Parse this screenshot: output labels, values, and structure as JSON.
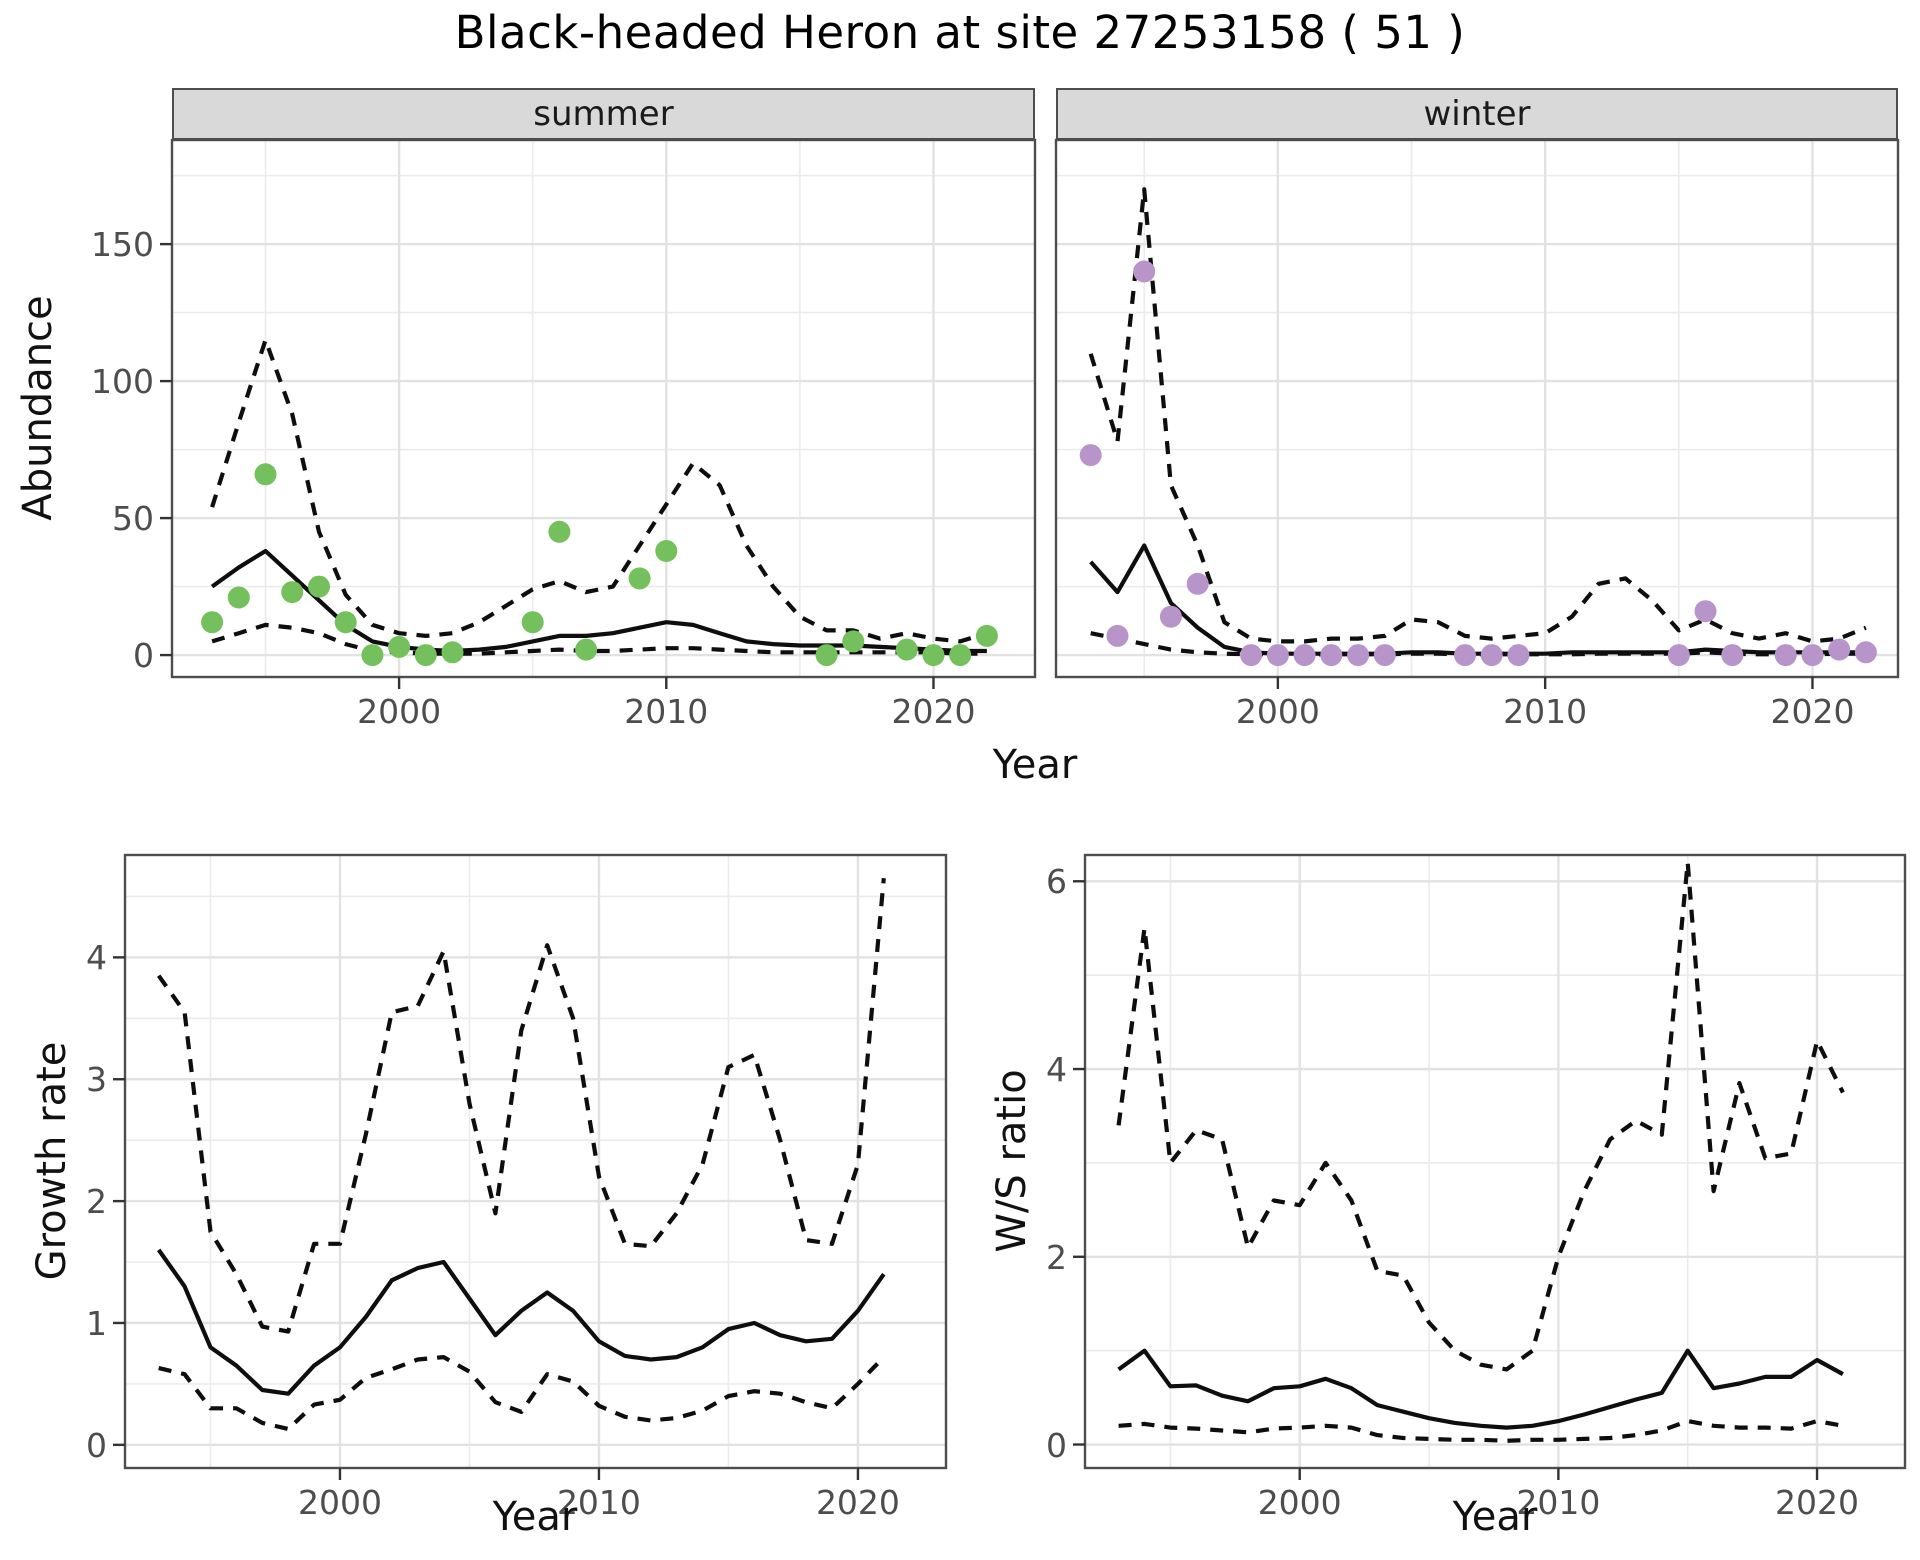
{
  "title": "Black-headed Heron at site 27253158 ( 51 )",
  "colors": {
    "summer_points": "#73C05C",
    "winter_points": "#B794C9",
    "line": "#0E0E0E",
    "grid_major": "#E2E2E2",
    "grid_minor": "#EBEBEB",
    "panel_border": "#4D4D4D",
    "strip_background": "#D9D9D9",
    "tick_text": "#4D4D4D"
  },
  "chart_data": [
    {
      "id": "abundance-summer",
      "type": "line",
      "facet_label": "summer",
      "ylabel": "Abundance",
      "xlabel": "Year",
      "xlim": [
        1991.5,
        2023.8
      ],
      "ylim": [
        -8,
        188
      ],
      "xticks": [
        2000,
        2010,
        2020
      ],
      "yticks": [
        0,
        50,
        100,
        150
      ],
      "xminor": [
        1995,
        2005,
        2015
      ],
      "yminor": [
        25,
        75,
        125,
        175
      ],
      "grid": true,
      "legend": "none",
      "series": [
        {
          "name": "ci-upper",
          "type": "line",
          "style": "dashed",
          "x": [
            1993,
            1994,
            1995,
            1996,
            1997,
            1998,
            1999,
            2000,
            2001,
            2002,
            2003,
            2004,
            2005,
            2006,
            2007,
            2008,
            2009,
            2010,
            2011,
            2012,
            2013,
            2014,
            2015,
            2016,
            2017,
            2018,
            2019,
            2020,
            2021,
            2022
          ],
          "y": [
            54,
            85,
            115,
            88,
            45,
            22,
            11,
            8,
            7,
            8,
            12,
            18,
            24,
            27,
            23,
            25,
            40,
            55,
            70,
            62,
            40,
            25,
            14,
            9,
            9,
            6,
            8,
            6,
            5,
            8
          ]
        },
        {
          "name": "ci-lower",
          "type": "line",
          "style": "dashed",
          "x": [
            1993,
            1994,
            1995,
            1996,
            1997,
            1998,
            1999,
            2000,
            2001,
            2002,
            2003,
            2004,
            2005,
            2006,
            2007,
            2008,
            2009,
            2010,
            2011,
            2012,
            2013,
            2014,
            2015,
            2016,
            2017,
            2018,
            2019,
            2020,
            2021,
            2022
          ],
          "y": [
            5,
            8,
            11,
            10,
            8,
            4,
            1.5,
            1,
            0.5,
            0.5,
            0.5,
            1,
            1.5,
            2,
            1.5,
            1.5,
            2,
            2.5,
            2.5,
            2,
            1.5,
            1,
            1,
            1,
            1,
            1,
            1,
            1,
            0.5,
            0.5
          ]
        },
        {
          "name": "median",
          "type": "line",
          "style": "solid",
          "x": [
            1993,
            1994,
            1995,
            1996,
            1997,
            1998,
            1999,
            2000,
            2001,
            2002,
            2003,
            2004,
            2005,
            2006,
            2007,
            2008,
            2009,
            2010,
            2011,
            2012,
            2013,
            2014,
            2015,
            2016,
            2017,
            2018,
            2019,
            2020,
            2021,
            2022
          ],
          "y": [
            25,
            32,
            38,
            29,
            20,
            11,
            5,
            3,
            2,
            1.5,
            2,
            3,
            5,
            7,
            7,
            8,
            10,
            12,
            11,
            8,
            5,
            4,
            3.5,
            3.5,
            3.5,
            3,
            2.5,
            2,
            1.5,
            1.5
          ]
        },
        {
          "name": "observed-counts",
          "type": "scatter",
          "color": "#73C05C",
          "x": [
            1993,
            1994,
            1995,
            1996,
            1997,
            1998,
            1999,
            2000,
            2001,
            2002,
            2005,
            2006,
            2007,
            2009,
            2010,
            2016,
            2017,
            2019,
            2020,
            2021,
            2022
          ],
          "y": [
            12,
            21,
            66,
            23,
            25,
            12,
            0,
            3,
            0,
            1,
            12,
            45,
            2,
            28,
            38,
            0,
            5,
            2,
            0,
            0,
            7
          ]
        }
      ]
    },
    {
      "id": "abundance-winter",
      "type": "line",
      "facet_label": "winter",
      "xlim": [
        1991.7,
        2023.2
      ],
      "ylim": [
        -8,
        188
      ],
      "xticks": [
        2000,
        2010,
        2020
      ],
      "yticks": [
        0,
        50,
        100,
        150
      ],
      "xminor": [
        1995,
        2005,
        2015
      ],
      "yminor": [
        25,
        75,
        125,
        175
      ],
      "grid": true,
      "legend": "none",
      "series": [
        {
          "name": "ci-upper",
          "type": "line",
          "style": "dashed",
          "x": [
            1993,
            1994,
            1995,
            1996,
            1997,
            1998,
            1999,
            2000,
            2001,
            2002,
            2003,
            2004,
            2005,
            2006,
            2007,
            2008,
            2009,
            2010,
            2011,
            2012,
            2013,
            2014,
            2015,
            2016,
            2017,
            2018,
            2019,
            2020,
            2021,
            2022
          ],
          "y": [
            110,
            78,
            170,
            62,
            40,
            12,
            6,
            5,
            5,
            6,
            6,
            7,
            13,
            12,
            7,
            6,
            7,
            8,
            14,
            26,
            28,
            20,
            9,
            13,
            8,
            6,
            8,
            5,
            6,
            10
          ]
        },
        {
          "name": "ci-lower",
          "type": "line",
          "style": "dashed",
          "x": [
            1993,
            1994,
            1995,
            1996,
            1997,
            1998,
            1999,
            2000,
            2001,
            2002,
            2003,
            2004,
            2005,
            2006,
            2007,
            2008,
            2009,
            2010,
            2011,
            2012,
            2013,
            2014,
            2015,
            2016,
            2017,
            2018,
            2019,
            2020,
            2021,
            2022
          ],
          "y": [
            8,
            6,
            4,
            2,
            1,
            0.5,
            0.3,
            0.3,
            0.3,
            0.3,
            0.3,
            0.3,
            0.5,
            0.5,
            0.3,
            0.3,
            0.3,
            0.3,
            0.3,
            0.5,
            0.5,
            0.5,
            0.5,
            1,
            0.5,
            0.3,
            0.3,
            0.3,
            0.5,
            0.5
          ]
        },
        {
          "name": "median",
          "type": "line",
          "style": "solid",
          "x": [
            1993,
            1994,
            1995,
            1996,
            1997,
            1998,
            1999,
            2000,
            2001,
            2002,
            2003,
            2004,
            2005,
            2006,
            2007,
            2008,
            2009,
            2010,
            2011,
            2012,
            2013,
            2014,
            2015,
            2016,
            2017,
            2018,
            2019,
            2020,
            2021,
            2022
          ],
          "y": [
            34,
            23,
            40,
            19,
            10,
            3,
            1,
            0.5,
            0.5,
            0.5,
            0.5,
            0.5,
            1,
            1,
            0.5,
            0.5,
            0.5,
            0.5,
            1,
            1,
            1,
            1,
            1,
            2,
            1.5,
            1,
            1,
            1,
            1,
            1
          ]
        },
        {
          "name": "observed-counts",
          "type": "scatter",
          "color": "#B794C9",
          "x": [
            1993,
            1994,
            1995,
            1996,
            1997,
            1999,
            2000,
            2001,
            2002,
            2003,
            2004,
            2007,
            2008,
            2009,
            2015,
            2016,
            2017,
            2019,
            2020,
            2021,
            2022
          ],
          "y": [
            73,
            7,
            140,
            14,
            26,
            0,
            0,
            0,
            0,
            0,
            0,
            0,
            0,
            0,
            0,
            16,
            0,
            0,
            0,
            2,
            1
          ]
        }
      ]
    },
    {
      "id": "growth-rate",
      "type": "line",
      "ylabel": "Growth rate",
      "xlabel": "Year",
      "xlim": [
        1991.7,
        2023.4
      ],
      "ylim": [
        -0.19,
        4.84
      ],
      "xticks": [
        2000,
        2010,
        2020
      ],
      "yticks": [
        0,
        1,
        2,
        3,
        4
      ],
      "xminor": [
        1995,
        2005,
        2015
      ],
      "yminor": [
        0.5,
        1.5,
        2.5,
        3.5,
        4.5
      ],
      "grid": true,
      "legend": "none",
      "series": [
        {
          "name": "ci-upper",
          "type": "line",
          "style": "dashed",
          "x": [
            1993,
            1994,
            1995,
            1996,
            1997,
            1998,
            1999,
            2000,
            2001,
            2002,
            2003,
            2004,
            2005,
            2006,
            2007,
            2008,
            2009,
            2010,
            2011,
            2012,
            2013,
            2014,
            2015,
            2016,
            2017,
            2018,
            2019,
            2020,
            2021
          ],
          "y": [
            3.85,
            3.55,
            1.75,
            1.4,
            0.97,
            0.93,
            1.65,
            1.65,
            2.55,
            3.55,
            3.6,
            4.05,
            2.8,
            1.9,
            3.4,
            4.1,
            3.5,
            2.2,
            1.65,
            1.63,
            1.9,
            2.3,
            3.1,
            3.2,
            2.5,
            1.68,
            1.65,
            2.3,
            4.65
          ]
        },
        {
          "name": "ci-lower",
          "type": "line",
          "style": "dashed",
          "x": [
            1993,
            1994,
            1995,
            1996,
            1997,
            1998,
            1999,
            2000,
            2001,
            2002,
            2003,
            2004,
            2005,
            2006,
            2007,
            2008,
            2009,
            2010,
            2011,
            2012,
            2013,
            2014,
            2015,
            2016,
            2017,
            2018,
            2019,
            2020,
            2021
          ],
          "y": [
            0.63,
            0.58,
            0.3,
            0.3,
            0.18,
            0.13,
            0.33,
            0.37,
            0.55,
            0.62,
            0.7,
            0.72,
            0.6,
            0.35,
            0.27,
            0.58,
            0.52,
            0.32,
            0.23,
            0.2,
            0.22,
            0.28,
            0.4,
            0.44,
            0.42,
            0.35,
            0.3,
            0.5,
            0.72
          ]
        },
        {
          "name": "median",
          "type": "line",
          "style": "solid",
          "x": [
            1993,
            1994,
            1995,
            1996,
            1997,
            1998,
            1999,
            2000,
            2001,
            2002,
            2003,
            2004,
            2005,
            2006,
            2007,
            2008,
            2009,
            2010,
            2011,
            2012,
            2013,
            2014,
            2015,
            2016,
            2017,
            2018,
            2019,
            2020,
            2021
          ],
          "y": [
            1.6,
            1.3,
            0.8,
            0.65,
            0.45,
            0.42,
            0.65,
            0.8,
            1.05,
            1.35,
            1.45,
            1.5,
            1.2,
            0.9,
            1.1,
            1.25,
            1.1,
            0.85,
            0.73,
            0.7,
            0.72,
            0.8,
            0.95,
            1.0,
            0.9,
            0.85,
            0.87,
            1.1,
            1.4
          ]
        }
      ]
    },
    {
      "id": "ws-ratio",
      "type": "line",
      "ylabel": "W/S ratio",
      "xlabel": "Year",
      "xlim": [
        1991.7,
        2023.4
      ],
      "ylim": [
        -0.25,
        6.28
      ],
      "xticks": [
        2000,
        2010,
        2020
      ],
      "yticks": [
        0,
        2,
        4,
        6
      ],
      "xminor": [
        1995,
        2005,
        2015
      ],
      "yminor": [
        1,
        3,
        5
      ],
      "grid": true,
      "legend": "none",
      "series": [
        {
          "name": "ci-upper",
          "type": "line",
          "style": "dashed",
          "x": [
            1993,
            1994,
            1995,
            1996,
            1997,
            1998,
            1999,
            2000,
            2001,
            2002,
            2003,
            2004,
            2005,
            2006,
            2007,
            2008,
            2009,
            2010,
            2011,
            2012,
            2013,
            2014,
            2015,
            2016,
            2017,
            2018,
            2019,
            2020,
            2021
          ],
          "y": [
            3.4,
            5.5,
            3.0,
            3.35,
            3.25,
            2.1,
            2.6,
            2.55,
            3.0,
            2.6,
            1.85,
            1.8,
            1.3,
            1.0,
            0.85,
            0.8,
            1.0,
            2.0,
            2.7,
            3.25,
            3.45,
            3.3,
            6.2,
            2.7,
            3.85,
            3.05,
            3.1,
            4.3,
            3.75
          ]
        },
        {
          "name": "ci-lower",
          "type": "line",
          "style": "dashed",
          "x": [
            1993,
            1994,
            1995,
            1996,
            1997,
            1998,
            1999,
            2000,
            2001,
            2002,
            2003,
            2004,
            2005,
            2006,
            2007,
            2008,
            2009,
            2010,
            2011,
            2012,
            2013,
            2014,
            2015,
            2016,
            2017,
            2018,
            2019,
            2020,
            2021
          ],
          "y": [
            0.2,
            0.22,
            0.18,
            0.17,
            0.15,
            0.13,
            0.17,
            0.18,
            0.2,
            0.18,
            0.1,
            0.07,
            0.06,
            0.05,
            0.05,
            0.04,
            0.05,
            0.05,
            0.06,
            0.07,
            0.1,
            0.15,
            0.25,
            0.2,
            0.18,
            0.18,
            0.17,
            0.25,
            0.2
          ]
        },
        {
          "name": "median",
          "type": "line",
          "style": "solid",
          "x": [
            1993,
            1994,
            1995,
            1996,
            1997,
            1998,
            1999,
            2000,
            2001,
            2002,
            2003,
            2004,
            2005,
            2006,
            2007,
            2008,
            2009,
            2010,
            2011,
            2012,
            2013,
            2014,
            2015,
            2016,
            2017,
            2018,
            2019,
            2020,
            2021
          ],
          "y": [
            0.8,
            1.0,
            0.62,
            0.63,
            0.52,
            0.46,
            0.6,
            0.62,
            0.7,
            0.6,
            0.42,
            0.35,
            0.28,
            0.23,
            0.2,
            0.18,
            0.2,
            0.25,
            0.32,
            0.4,
            0.48,
            0.55,
            1.0,
            0.6,
            0.65,
            0.72,
            0.72,
            0.9,
            0.75
          ]
        }
      ]
    }
  ]
}
